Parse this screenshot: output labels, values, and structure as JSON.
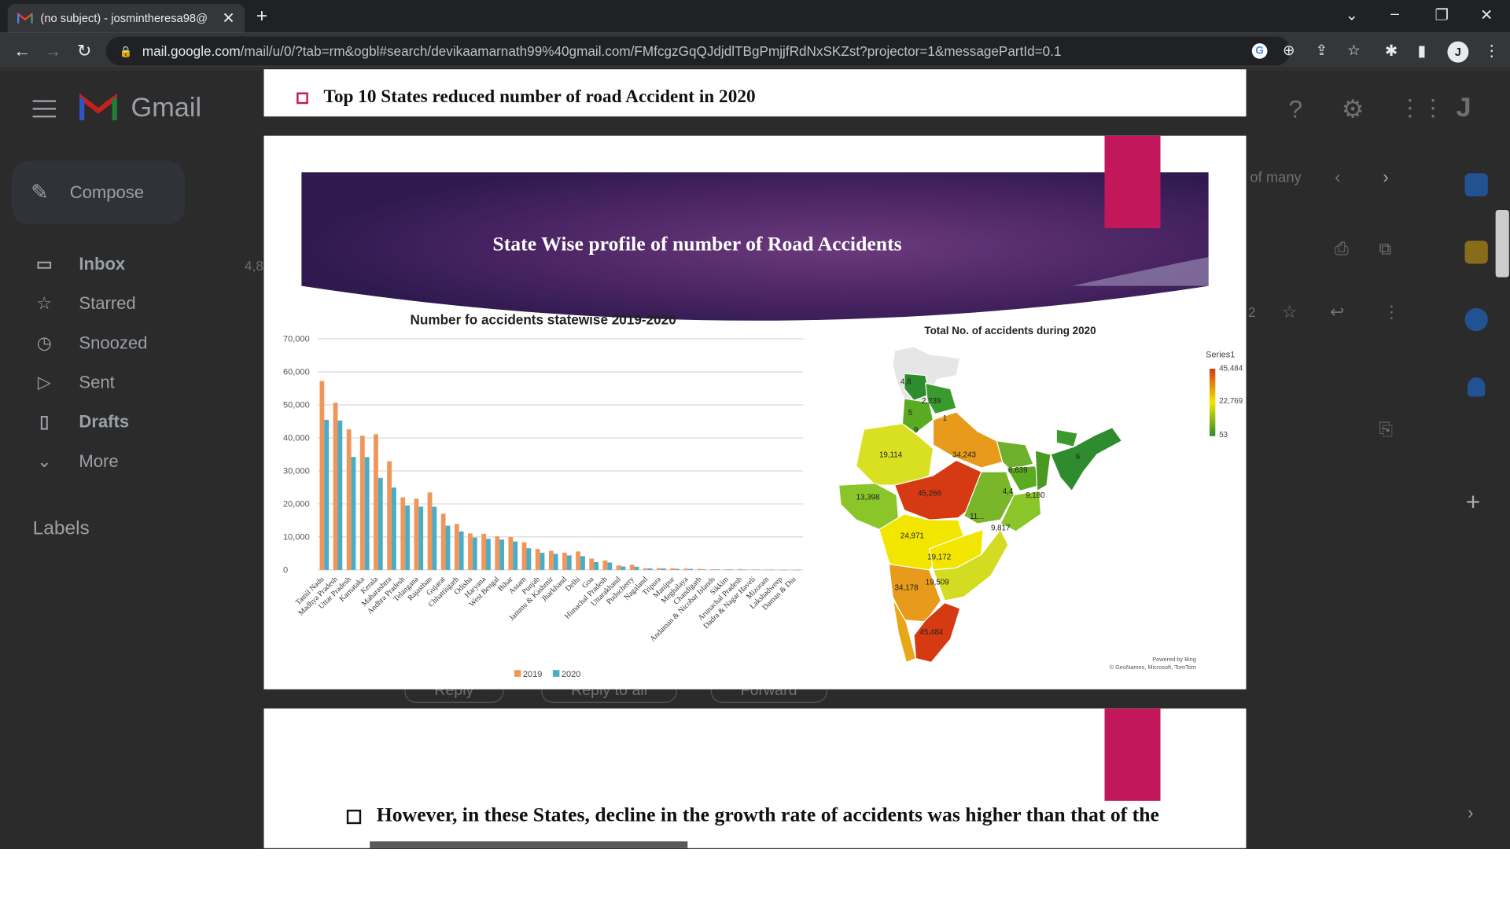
{
  "browser": {
    "tab_title": "(no subject) - josmintheresa98@",
    "url_host": "mail.google.com",
    "url_path": "/mail/u/0/?tab=rm&ogbl#search/devikaamarnath99%40gmail.com/FMfcgzGqQJdjdlTBgPmjjfRdNxSKZst?projector=1&messagePartId=0.1",
    "avatar_letter": "J"
  },
  "gmail": {
    "logo_text": "Gmail",
    "compose_label": "Compose",
    "nav": [
      {
        "label": "Inbox",
        "icon": "inbox-icon"
      },
      {
        "label": "Starred",
        "icon": "star-icon"
      },
      {
        "label": "Snoozed",
        "icon": "clock-icon"
      },
      {
        "label": "Sent",
        "icon": "send-icon"
      },
      {
        "label": "Drafts",
        "icon": "draft-icon"
      },
      {
        "label": "More",
        "icon": "chevron-down-icon"
      }
    ],
    "inbox_count": "4,8",
    "labels_heading": "Labels",
    "pagination_text": "of many",
    "reply_label": "Reply",
    "reply_all_label": "Reply to all",
    "forward_label": "Forward",
    "side_num": "2"
  },
  "slides": {
    "prev_bullet": "Top 10 States reduced number of road Accident in 2020",
    "slide_title": "State Wise profile of number of Road Accidents",
    "next_bullet": "However, in these States, decline in the growth rate of accidents was higher than that of the"
  },
  "colors": {
    "accent": "#c2185b",
    "series_2019": "#f0965a",
    "series_2020": "#4bacc6",
    "banner": "#4a2463"
  },
  "chart_data": [
    {
      "type": "bar",
      "title": "Number fo accidents statewise 2019-2020",
      "ylim": [
        0,
        70000
      ],
      "yticks": [
        "70,000",
        "60,000",
        "50,000",
        "40,000",
        "30,000",
        "20,000",
        "10,000",
        "0"
      ],
      "legend_position": "bottom",
      "grid": true,
      "categories": [
        "Tamil Nadu",
        "Madhya Pradesh",
        "Uttar Pradesh",
        "Karnataka",
        "Kerala",
        "Maharashtra",
        "Andhra Pradesh",
        "Telangana",
        "Rajasthan",
        "Gujarat",
        "Chhattisgarh",
        "Odisha",
        "Haryana",
        "West Bengal",
        "Bihar",
        "Assam",
        "Punjab",
        "Jammu & Kashmir",
        "Jharkhand",
        "Delhi",
        "Goa",
        "Himachal Pradesh",
        "Uttarakhand",
        "Puducherry",
        "Nagaland",
        "Tripura",
        "Manipur",
        "Meghalaya",
        "Chandigarh",
        "Andaman & Nicobar Islands",
        "Sikkim",
        "Arunachal Pradesh",
        "Dadra & Nagar Haveli",
        "Mizoram",
        "Lakshadweep",
        "Daman & Diu"
      ],
      "series": [
        {
          "name": "2019",
          "values": [
            57228,
            50669,
            42572,
            40658,
            41111,
            32925,
            21992,
            21570,
            23480,
            17046,
            13899,
            11064,
            10944,
            10158,
            10007,
            8350,
            6348,
            5796,
            5217,
            5610,
            3440,
            2873,
            1352,
            1580,
            500,
            560,
            480,
            390,
            310,
            180,
            190,
            240,
            130,
            60,
            5,
            30
          ]
        },
        {
          "name": "2020",
          "values": [
            45484,
            45266,
            34243,
            34178,
            27877,
            24971,
            19509,
            19172,
            19114,
            13398,
            11656,
            9817,
            9431,
            9180,
            8639,
            6595,
            5203,
            4860,
            4405,
            4178,
            2375,
            2239,
            1041,
            969,
            452,
            433,
            340,
            310,
            159,
            141,
            140,
            120,
            119,
            47,
            3,
            20
          ]
        }
      ]
    },
    {
      "type": "map",
      "title": "Total No. of accidents during 2020",
      "legend_title": "Series1",
      "legend_values": [
        "45,484",
        "22,769",
        "53"
      ],
      "credit_line1": "Powered by Bing",
      "credit_line2": "© GeoNames, Microsoft, TomTom",
      "region_labels": [
        "4,8",
        "2,239",
        "5",
        "1",
        "9",
        "19,114",
        "34,243",
        "8,639",
        "6",
        "13,398",
        "45,266",
        "4,4",
        "9,180",
        "11...",
        "9,817",
        "24,971",
        "19,172",
        "34,178",
        "19,509",
        "45,484"
      ]
    }
  ]
}
